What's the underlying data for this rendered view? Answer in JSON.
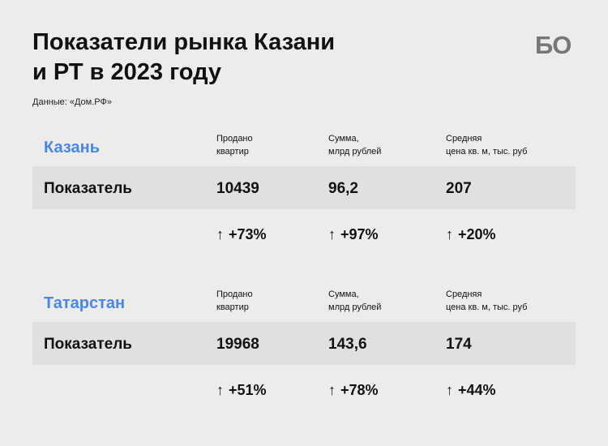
{
  "title_line1": "Показатели рынка Казани",
  "title_line2": "и РТ в 2023 году",
  "logo": "БО",
  "source": "Данные: «Дом.РФ»",
  "chart_data": {
    "type": "table",
    "columns": [
      {
        "line1": "Продано",
        "line2": "квартир"
      },
      {
        "line1": "Сумма,",
        "line2": "млрд рублей"
      },
      {
        "line1": "Средняя",
        "line2": "цена кв. м, тыс. руб"
      }
    ],
    "row_label": "Показатель",
    "arrow": "↑",
    "sections": [
      {
        "region": "Казань",
        "values": [
          "10439",
          "96,2",
          "207"
        ],
        "changes": [
          "+73%",
          "+97%",
          "+20%"
        ]
      },
      {
        "region": "Татарстан",
        "values": [
          "19968",
          "143,6",
          "174"
        ],
        "changes": [
          "+51%",
          "+78%",
          "+44%"
        ]
      }
    ]
  }
}
